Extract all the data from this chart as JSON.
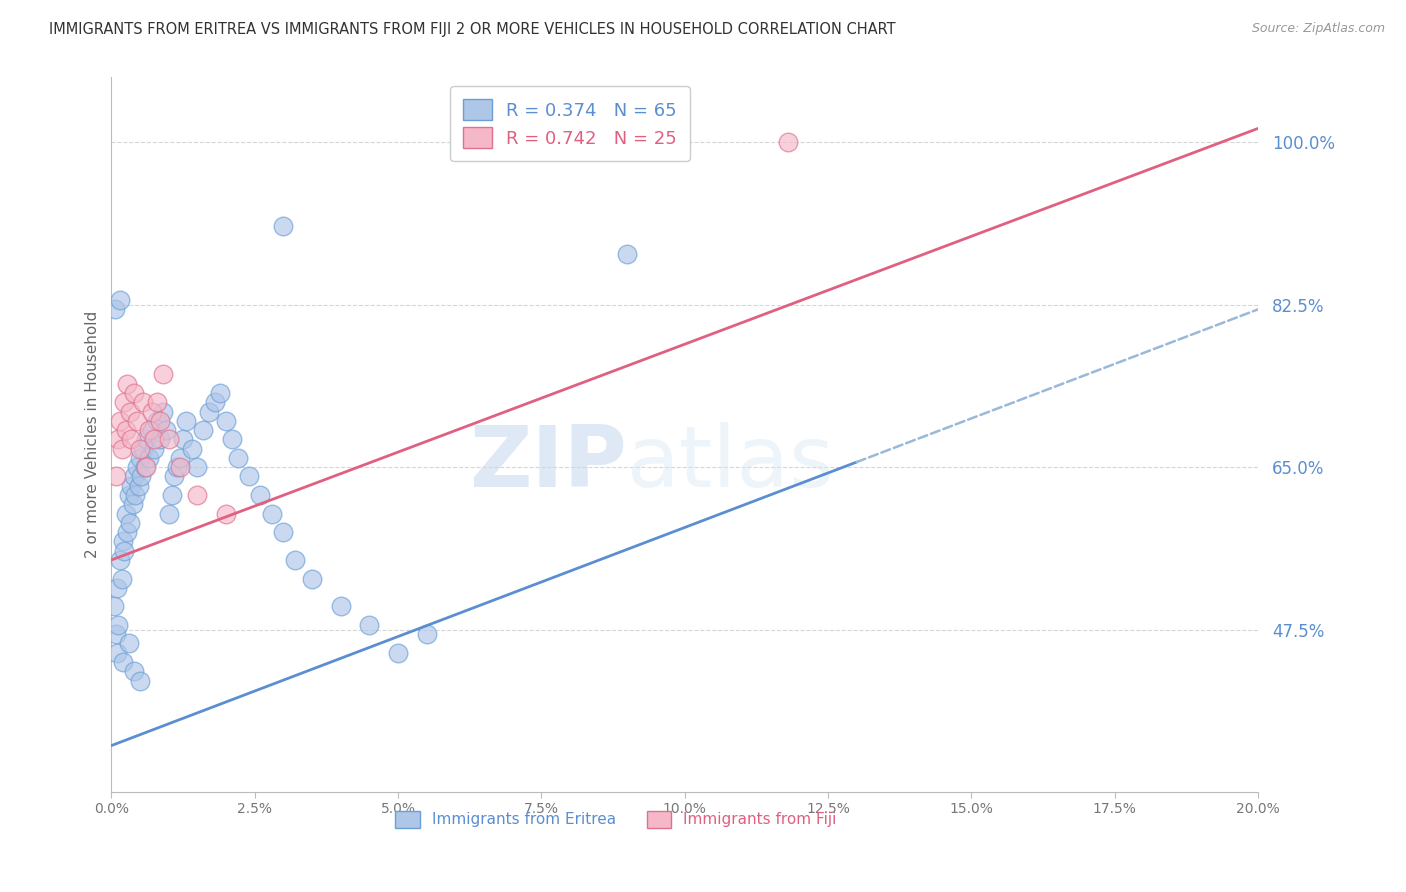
{
  "title": "IMMIGRANTS FROM ERITREA VS IMMIGRANTS FROM FIJI 2 OR MORE VEHICLES IN HOUSEHOLD CORRELATION CHART",
  "source": "Source: ZipAtlas.com",
  "ylabel": "2 or more Vehicles in Household",
  "legend_eritrea": "Immigrants from Eritrea",
  "legend_fiji": "Immigrants from Fiji",
  "R_eritrea": 0.374,
  "N_eritrea": 65,
  "R_fiji": 0.742,
  "N_fiji": 25,
  "color_eritrea_fill": "#aec6e8",
  "color_fiji_fill": "#f4b8c8",
  "color_eritrea_edge": "#6a9fd8",
  "color_fiji_edge": "#e07090",
  "color_eritrea_line": "#5b8ed0",
  "color_fiji_line": "#e06080",
  "color_dashed": "#9ab8d8",
  "xlim": [
    0.0,
    20.0
  ],
  "ylim": [
    30.0,
    107.0
  ],
  "yticks": [
    47.5,
    65.0,
    82.5,
    100.0
  ],
  "xticks": [
    0.0,
    2.5,
    5.0,
    7.5,
    10.0,
    12.5,
    15.0,
    17.5,
    20.0
  ],
  "blue_line_x0": 0.0,
  "blue_line_y0": 35.0,
  "blue_line_x1": 20.0,
  "blue_line_y1": 82.0,
  "blue_solid_end_x": 13.0,
  "pink_line_x0": 0.0,
  "pink_line_y0": 55.0,
  "pink_line_x1": 20.0,
  "pink_line_y1": 101.5,
  "watermark": "ZIPatlas",
  "background_color": "#ffffff",
  "grid_color": "#cccccc",
  "title_color": "#333333",
  "tick_label_color_right": "#5b8ed0",
  "scatter_size": 180,
  "scatter_alpha": 0.65,
  "eritrea_x": [
    0.05,
    0.08,
    0.1,
    0.12,
    0.15,
    0.18,
    0.2,
    0.22,
    0.25,
    0.28,
    0.3,
    0.32,
    0.35,
    0.38,
    0.4,
    0.42,
    0.45,
    0.48,
    0.5,
    0.52,
    0.55,
    0.58,
    0.6,
    0.65,
    0.7,
    0.75,
    0.8,
    0.85,
    0.9,
    0.95,
    1.0,
    1.05,
    1.1,
    1.15,
    1.2,
    1.25,
    1.3,
    1.4,
    1.5,
    1.6,
    1.7,
    1.8,
    1.9,
    2.0,
    2.1,
    2.2,
    2.4,
    2.6,
    2.8,
    3.0,
    3.2,
    3.5,
    4.0,
    4.5,
    5.0,
    5.5,
    0.1,
    0.2,
    0.3,
    0.4,
    0.5,
    3.0,
    9.0,
    0.06,
    0.15
  ],
  "eritrea_y": [
    50,
    47,
    52,
    48,
    55,
    53,
    57,
    56,
    60,
    58,
    62,
    59,
    63,
    61,
    64,
    62,
    65,
    63,
    66,
    64,
    67,
    65,
    68,
    66,
    69,
    67,
    70,
    68,
    71,
    69,
    60,
    62,
    64,
    65,
    66,
    68,
    70,
    67,
    65,
    69,
    71,
    72,
    73,
    70,
    68,
    66,
    64,
    62,
    60,
    58,
    55,
    53,
    50,
    48,
    45,
    47,
    45,
    44,
    46,
    43,
    42,
    91,
    88,
    82,
    83
  ],
  "fiji_x": [
    0.08,
    0.12,
    0.15,
    0.18,
    0.22,
    0.25,
    0.28,
    0.32,
    0.35,
    0.4,
    0.45,
    0.5,
    0.55,
    0.6,
    0.65,
    0.7,
    0.75,
    0.8,
    0.85,
    0.9,
    1.0,
    1.2,
    1.5,
    2.0,
    11.8
  ],
  "fiji_y": [
    64,
    68,
    70,
    67,
    72,
    69,
    74,
    71,
    68,
    73,
    70,
    67,
    72,
    65,
    69,
    71,
    68,
    72,
    70,
    75,
    68,
    65,
    62,
    60,
    100
  ]
}
